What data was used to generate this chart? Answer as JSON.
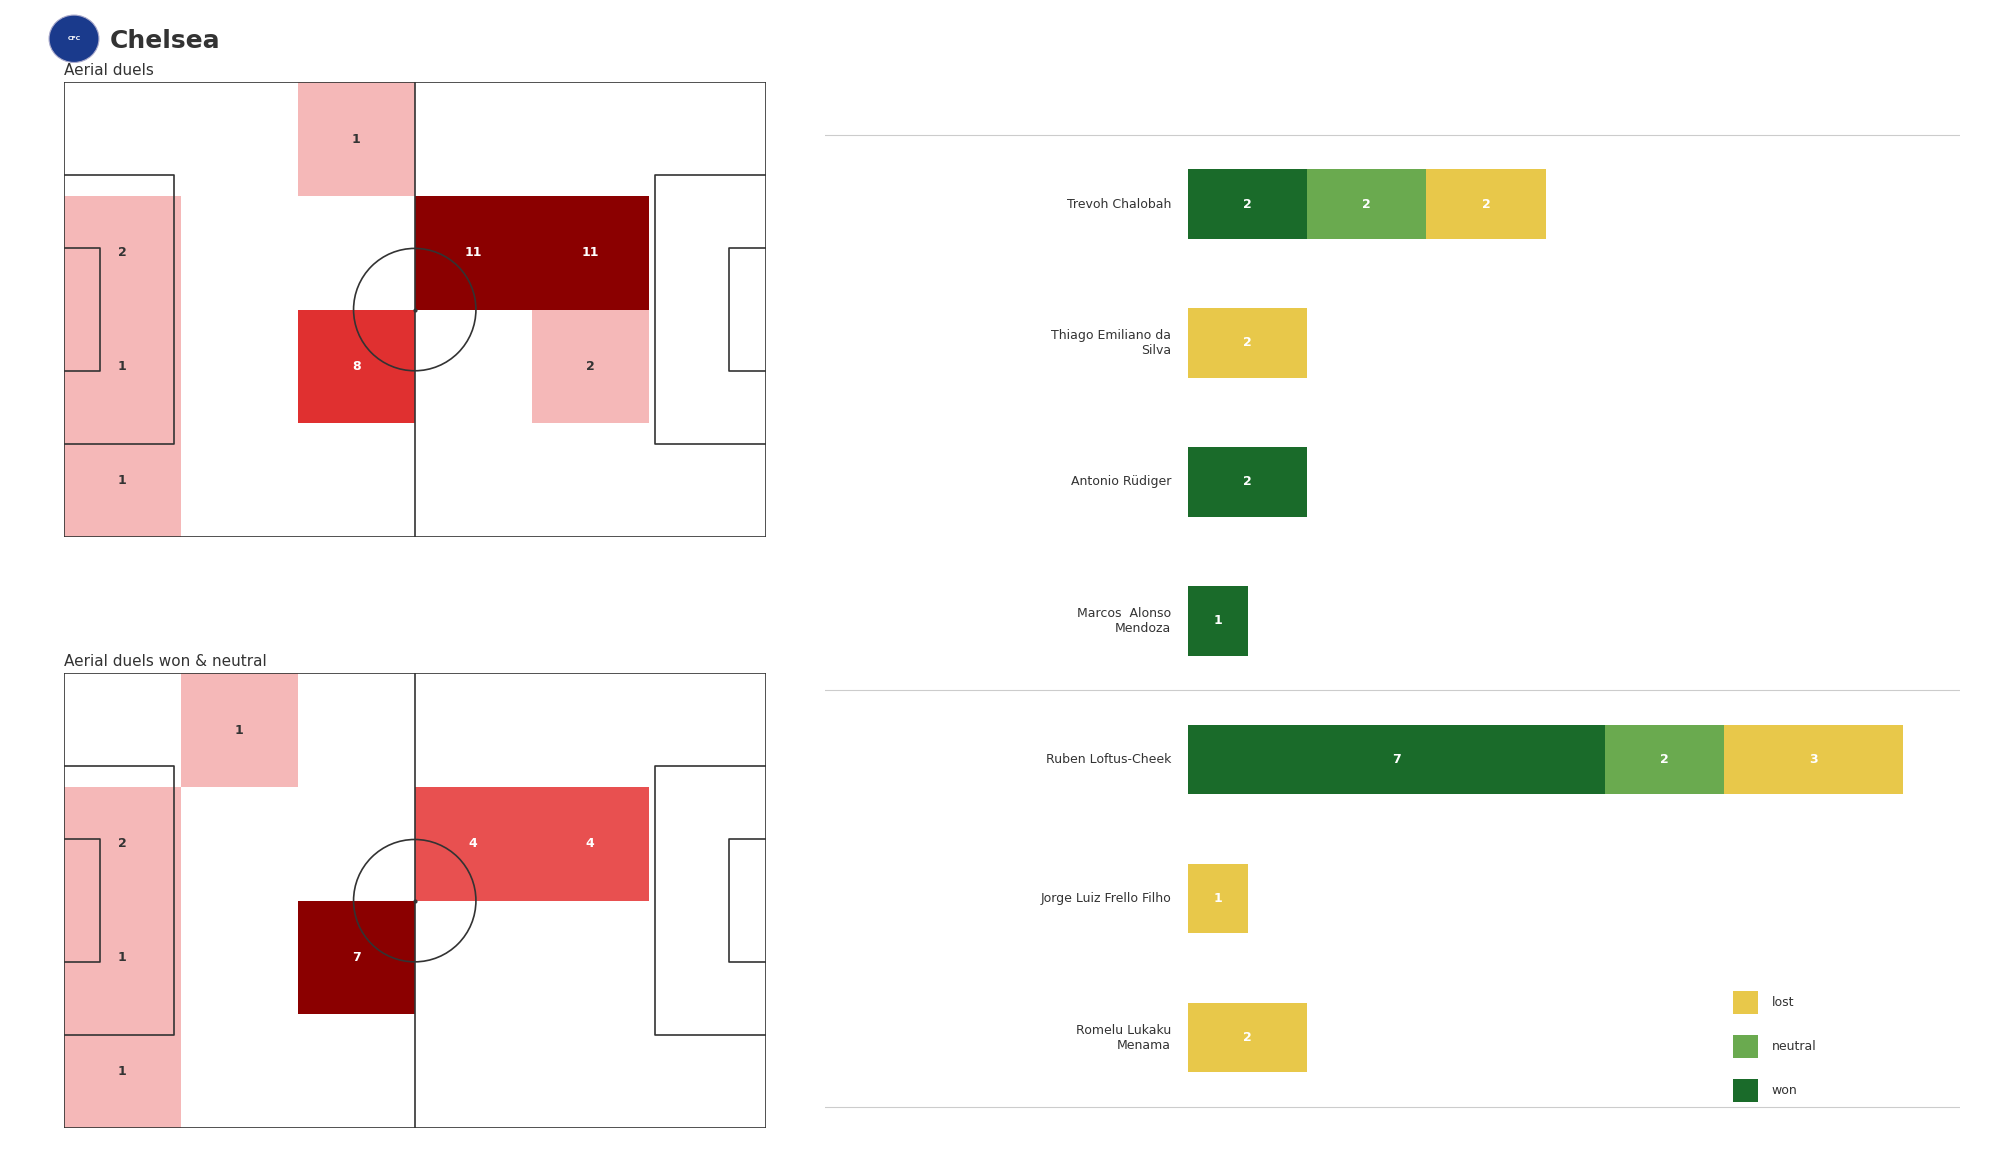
{
  "title": "Chelsea",
  "subtitle_top": "Aerial duels",
  "subtitle_bottom": "Aerial duels won & neutral",
  "pitch_top": {
    "grid": [
      [
        0,
        0,
        1,
        0,
        0,
        0
      ],
      [
        2,
        0,
        0,
        11,
        11,
        0
      ],
      [
        1,
        0,
        8,
        0,
        2,
        0
      ],
      [
        1,
        0,
        0,
        0,
        0,
        0
      ]
    ],
    "colors": [
      [
        "white",
        "white",
        "#f5b8b8",
        "white",
        "white",
        "white"
      ],
      [
        "#f5b8b8",
        "white",
        "white",
        "#8b0000",
        "#8b0000",
        "white"
      ],
      [
        "#f5b8b8",
        "white",
        "#e03030",
        "white",
        "#f5b8b8",
        "white"
      ],
      [
        "#f5b8b8",
        "white",
        "white",
        "white",
        "white",
        "white"
      ]
    ]
  },
  "pitch_bottom": {
    "grid": [
      [
        0,
        1,
        0,
        0,
        0,
        0
      ],
      [
        2,
        0,
        0,
        4,
        4,
        0
      ],
      [
        1,
        0,
        7,
        0,
        0,
        0
      ],
      [
        1,
        0,
        0,
        0,
        0,
        0
      ]
    ],
    "colors": [
      [
        "white",
        "#f5b8b8",
        "white",
        "white",
        "white",
        "white"
      ],
      [
        "#f5b8b8",
        "white",
        "white",
        "#e85050",
        "#e85050",
        "white"
      ],
      [
        "#f5b8b8",
        "white",
        "#8b0000",
        "white",
        "white",
        "white"
      ],
      [
        "#f5b8b8",
        "white",
        "white",
        "white",
        "white",
        "white"
      ]
    ]
  },
  "players": [
    {
      "name": "Trevoh Chalobah",
      "won": 2,
      "neutral": 2,
      "lost": 2
    },
    {
      "name": "Thiago Emiliano da\nSilva",
      "won": 0,
      "neutral": 0,
      "lost": 2
    },
    {
      "name": "Antonio Rüdiger",
      "won": 2,
      "neutral": 0,
      "lost": 0
    },
    {
      "name": "Marcos  Alonso\nMendoza",
      "won": 1,
      "neutral": 0,
      "lost": 0
    },
    {
      "name": "Ruben Loftus-Cheek",
      "won": 7,
      "neutral": 2,
      "lost": 3
    },
    {
      "name": "Jorge Luiz Frello Filho",
      "won": 0,
      "neutral": 0,
      "lost": 1
    },
    {
      "name": "Romelu Lukaku\nMenama",
      "won": 0,
      "neutral": 0,
      "lost": 2
    }
  ],
  "separator_after": [
    3
  ],
  "colors": {
    "won": "#1a6b2a",
    "neutral": "#6aaa4f",
    "lost": "#e8c84a",
    "background": "#ffffff",
    "pitch_line": "#333333",
    "text": "#333333",
    "separator": "#cccccc"
  },
  "bar_max": 12
}
